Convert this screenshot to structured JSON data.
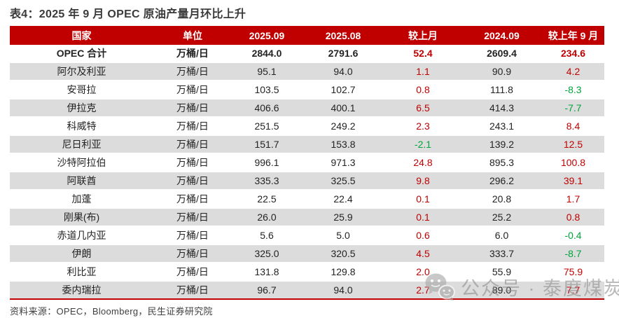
{
  "title": "表4：2025 年 9 月 OPEC 原油产量月环比上升",
  "table": {
    "columns": [
      "国家",
      "单位",
      "2025.09",
      "2025.08",
      "较上月",
      "2024.09",
      "较上年 9 月"
    ],
    "rows": [
      {
        "country": "OPEC 合计",
        "unit": "万桶/日",
        "v2509": "2844.0",
        "v2508": "2791.6",
        "mom": "52.4",
        "v2409": "2609.4",
        "yoy": "234.6",
        "bold": true
      },
      {
        "country": "阿尔及利亚",
        "unit": "万桶/日",
        "v2509": "95.1",
        "v2508": "94.0",
        "mom": "1.1",
        "v2409": "90.9",
        "yoy": "4.2",
        "bold": false
      },
      {
        "country": "安哥拉",
        "unit": "万桶/日",
        "v2509": "103.5",
        "v2508": "102.7",
        "mom": "0.8",
        "v2409": "111.8",
        "yoy": "-8.3",
        "bold": false
      },
      {
        "country": "伊拉克",
        "unit": "万桶/日",
        "v2509": "406.6",
        "v2508": "400.1",
        "mom": "6.5",
        "v2409": "414.3",
        "yoy": "-7.7",
        "bold": false
      },
      {
        "country": "科威特",
        "unit": "万桶/日",
        "v2509": "251.5",
        "v2508": "249.2",
        "mom": "2.3",
        "v2409": "243.1",
        "yoy": "8.4",
        "bold": false
      },
      {
        "country": "尼日利亚",
        "unit": "万桶/日",
        "v2509": "151.7",
        "v2508": "153.8",
        "mom": "-2.1",
        "v2409": "139.2",
        "yoy": "12.5",
        "bold": false
      },
      {
        "country": "沙特阿拉伯",
        "unit": "万桶/日",
        "v2509": "996.1",
        "v2508": "971.3",
        "mom": "24.8",
        "v2409": "895.3",
        "yoy": "100.8",
        "bold": false
      },
      {
        "country": "阿联酋",
        "unit": "万桶/日",
        "v2509": "335.3",
        "v2508": "325.5",
        "mom": "9.8",
        "v2409": "296.2",
        "yoy": "39.1",
        "bold": false
      },
      {
        "country": "加蓬",
        "unit": "万桶/日",
        "v2509": "22.5",
        "v2508": "22.4",
        "mom": "0.1",
        "v2409": "20.8",
        "yoy": "1.7",
        "bold": false
      },
      {
        "country": "刚果(布)",
        "unit": "万桶/日",
        "v2509": "26.0",
        "v2508": "25.9",
        "mom": "0.1",
        "v2409": "25.2",
        "yoy": "0.8",
        "bold": false
      },
      {
        "country": "赤道几内亚",
        "unit": "万桶/日",
        "v2509": "5.6",
        "v2508": "5.0",
        "mom": "0.6",
        "v2409": "6.0",
        "yoy": "-0.4",
        "bold": false
      },
      {
        "country": "伊朗",
        "unit": "万桶/日",
        "v2509": "325.0",
        "v2508": "320.5",
        "mom": "4.5",
        "v2409": "333.7",
        "yoy": "-8.7",
        "bold": false
      },
      {
        "country": "利比亚",
        "unit": "万桶/日",
        "v2509": "131.8",
        "v2508": "129.8",
        "mom": "2.0",
        "v2409": "55.9",
        "yoy": "75.9",
        "bold": false
      },
      {
        "country": "委内瑞拉",
        "unit": "万桶/日",
        "v2509": "96.7",
        "v2508": "94.0",
        "mom": "2.7",
        "v2409": "89.0",
        "yoy": "7.7",
        "bold": false
      }
    ]
  },
  "source": "资料来源：OPEC，Bloomberg，民生证券研究院",
  "watermark": {
    "icon": "wechat-icon",
    "text": "公众号 · 泰度煤炭"
  },
  "colors": {
    "header_bg": "#C00000",
    "positive_change": "#C00000",
    "negative_change": "#00A43C",
    "alt_row_bg": "#DCDCDC",
    "bottom_divider": "#C00000"
  }
}
